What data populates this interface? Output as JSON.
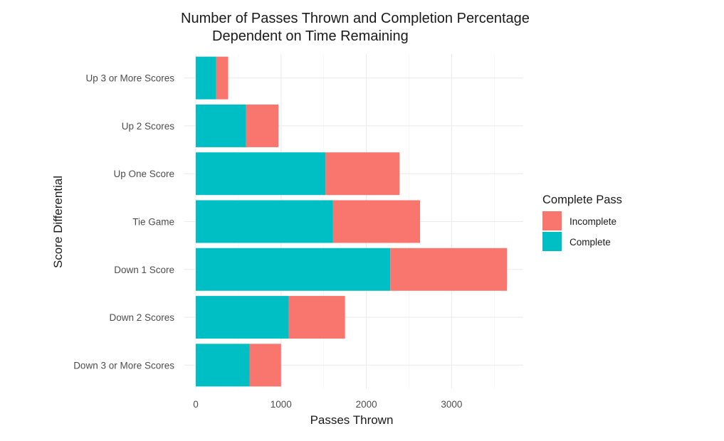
{
  "chart_data": {
    "type": "bar",
    "orientation": "horizontal",
    "stacked": true,
    "title_lines": [
      "Number of Passes Thrown and Completion Percentage",
      "Dependent on Time Remaining"
    ],
    "xlabel": "Passes Thrown",
    "ylabel": "Score Differential",
    "categories": [
      "Up 3 or More Scores",
      "Up 2 Scores",
      "Up One Score",
      "Tie Game",
      "Down 1 Score",
      "Down 2 Scores",
      "Down 3 or More Scores"
    ],
    "series": [
      {
        "name": "Complete",
        "color": "#00BFC4",
        "values": [
          240,
          590,
          1520,
          1610,
          2280,
          1090,
          630
        ]
      },
      {
        "name": "Incomplete",
        "color": "#F8766D",
        "values": [
          140,
          380,
          870,
          1020,
          1370,
          660,
          370
        ]
      }
    ],
    "totals": [
      380,
      970,
      2390,
      2630,
      3650,
      1750,
      1000
    ],
    "xlim": [
      0,
      3840
    ],
    "xticks": [
      0,
      1000,
      2000,
      3000
    ],
    "grid": true,
    "legend": {
      "title": "Complete Pass",
      "position": "right",
      "entries": [
        {
          "label": "Incomplete",
          "color": "#F8766D"
        },
        {
          "label": "Complete",
          "color": "#00BFC4"
        }
      ]
    }
  }
}
